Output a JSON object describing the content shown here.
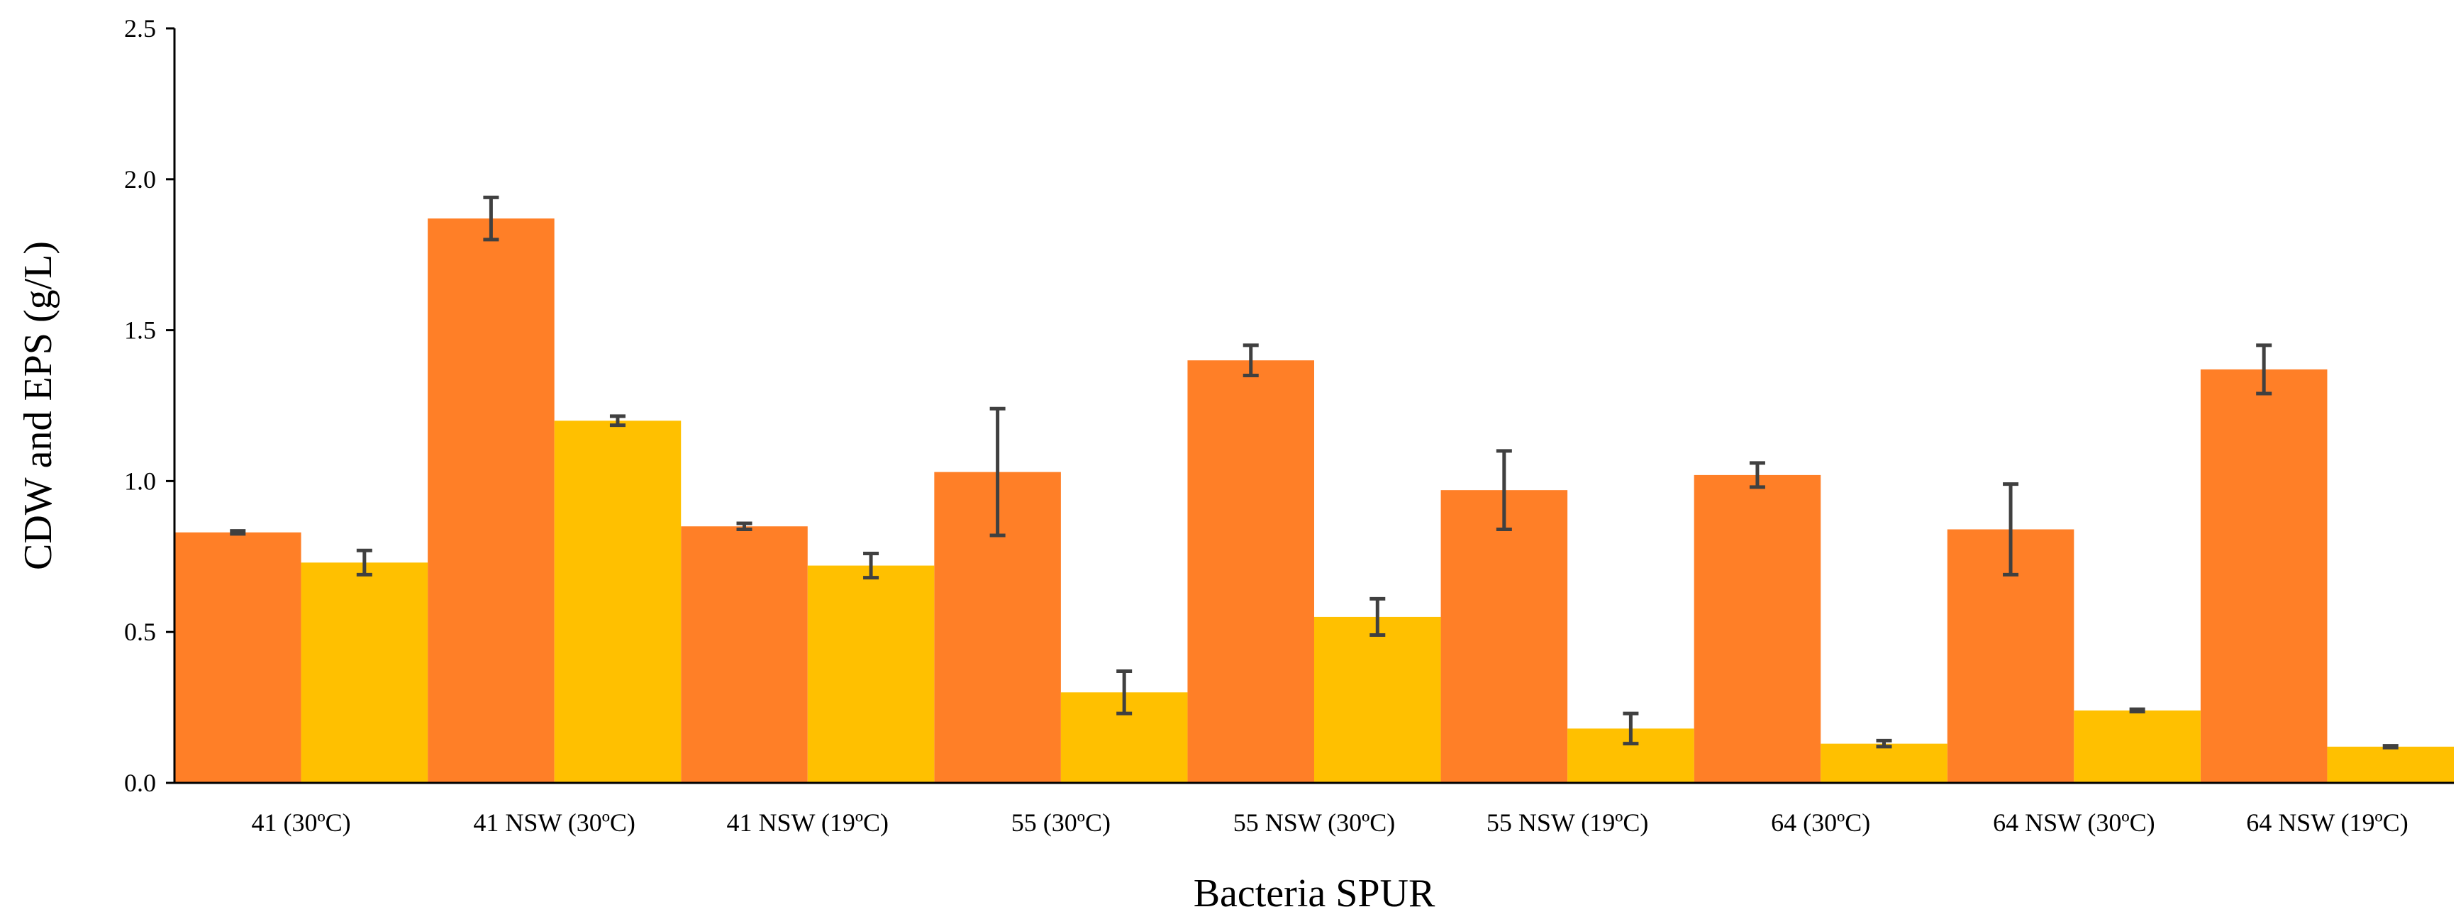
{
  "chart_data": {
    "type": "bar",
    "title": "",
    "xlabel": "Bacteria SPUR",
    "ylabel": "CDW and EPS (g/L)",
    "ylim": [
      0,
      2.5
    ],
    "yticks": [
      "0.0",
      "0.5",
      "1.0",
      "1.5",
      "2.0",
      "2.5"
    ],
    "grid": false,
    "legend": "none",
    "categories": [
      "41 (30ºC)",
      "41 NSW (30ºC)",
      "41 NSW (19ºC)",
      "55 (30ºC)",
      "55 NSW (30ºC)",
      "55 NSW (19ºC)",
      "64 (30ºC)",
      "64 NSW (30ºC)",
      "64 NSW (19ºC)"
    ],
    "series": [
      {
        "name": "CDW",
        "color": "#FF7F27",
        "values": [
          0.83,
          1.87,
          0.85,
          1.03,
          1.4,
          0.97,
          1.02,
          0.84,
          1.37
        ],
        "errors": [
          0.005,
          0.07,
          0.01,
          0.21,
          0.05,
          0.13,
          0.04,
          0.15,
          0.08
        ]
      },
      {
        "name": "EPS",
        "color": "#FFC000",
        "values": [
          0.73,
          1.2,
          0.72,
          0.3,
          0.55,
          0.18,
          0.13,
          0.24,
          0.12
        ],
        "errors": [
          0.04,
          0.015,
          0.04,
          0.07,
          0.06,
          0.05,
          0.01,
          0.004,
          0.003
        ]
      }
    ]
  }
}
